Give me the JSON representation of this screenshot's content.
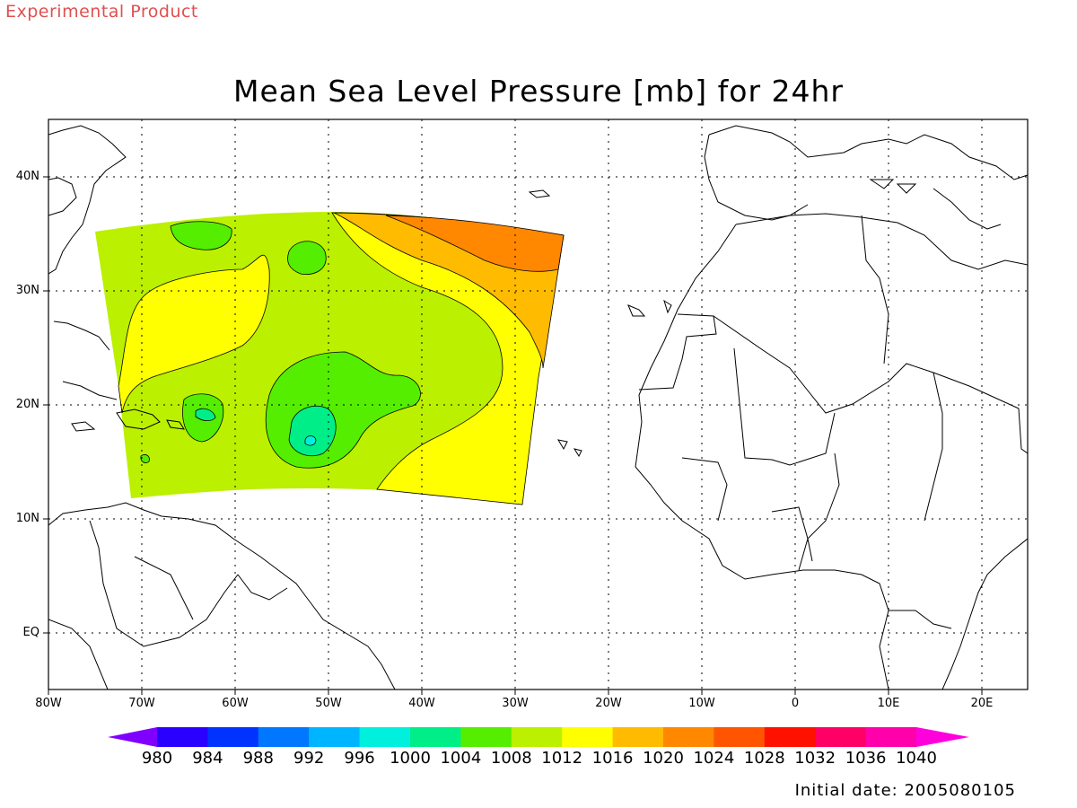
{
  "header": {
    "product_note": "Experimental Product",
    "title": "Mean Sea Level Pressure [mb] for 24hr"
  },
  "map": {
    "lat_labels": [
      "40N",
      "30N",
      "20N",
      "10N",
      "EQ"
    ],
    "lon_labels": [
      "80W",
      "70W",
      "60W",
      "50W",
      "40W",
      "30W",
      "20W",
      "10W",
      "0",
      "10E",
      "20E"
    ]
  },
  "colorbar": {
    "labels": [
      "980",
      "984",
      "988",
      "992",
      "996",
      "1000",
      "1004",
      "1008",
      "1012",
      "1016",
      "1020",
      "1024",
      "1028",
      "1032",
      "1036",
      "1040"
    ],
    "colors": [
      "#7f00ff",
      "#2a00ff",
      "#0033ff",
      "#0077ff",
      "#00b5ff",
      "#00f0dd",
      "#00ee88",
      "#55ee00",
      "#bbf000",
      "#ffff00",
      "#ffbb00",
      "#ff8800",
      "#ff5500",
      "#ff1100",
      "#ff0066",
      "#ff00aa",
      "#ff00dd"
    ]
  },
  "footer": {
    "initial_date": "Initial date: 2005080105"
  }
}
